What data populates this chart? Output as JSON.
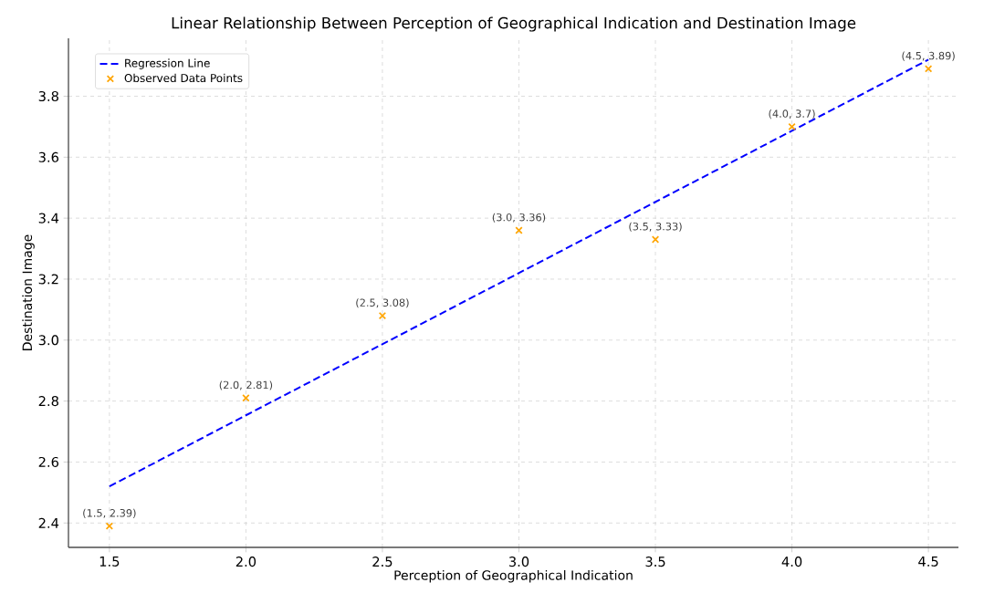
{
  "chart_data": {
    "type": "scatter",
    "title": "Linear Relationship Between Perception of Geographical Indication and Destination Image",
    "xlabel": "Perception of Geographical Indication",
    "ylabel": "Destination Image",
    "xlim": [
      1.35,
      4.61
    ],
    "ylim": [
      2.32,
      3.99
    ],
    "xticks": [
      1.5,
      {
        "value": 2,
        "label": "2.0"
      },
      2.5,
      {
        "value": 3,
        "label": "3.0"
      },
      3.5,
      {
        "value": 4,
        "label": "4.0"
      },
      4.5
    ],
    "yticks": [
      2.4,
      2.6,
      2.8,
      {
        "value": 3,
        "label": "3.0"
      },
      3.2,
      3.4,
      3.6,
      3.8
    ],
    "grid": true,
    "legend": "top left",
    "series": [
      {
        "name": "Regression Line",
        "type": "line",
        "color": "#0000ff",
        "line_style": "dashed",
        "marker": "none",
        "x": [
          1.5,
          4.5
        ],
        "values": [
          2.52,
          3.92
        ]
      },
      {
        "name": "Observed Data Points",
        "color": "#ffa500",
        "marker": "cross",
        "x": [
          1.5,
          2.0,
          2.5,
          3.0,
          3.5,
          4.0,
          4.5
        ],
        "values": [
          2.39,
          2.81,
          3.08,
          3.36,
          3.33,
          3.7,
          3.89
        ],
        "value_labels": [
          "(1.5, 2.39)",
          "(2.0, 2.81)",
          "(2.5, 3.08)",
          "(3.0, 3.36)",
          "(3.5, 3.33)",
          "(4.0, 3.7)",
          "(4.5, 3.89)"
        ]
      }
    ]
  }
}
